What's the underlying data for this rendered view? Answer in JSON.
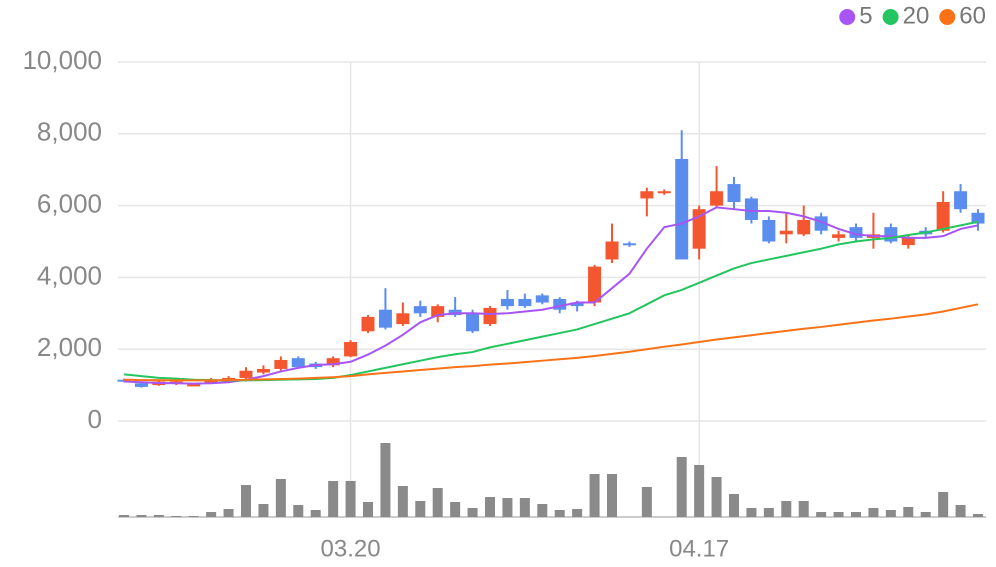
{
  "chart_data": {
    "type": "candlestick",
    "categories": [
      null,
      null,
      null,
      null,
      null,
      null,
      null,
      null,
      null,
      null,
      null,
      null,
      null,
      "03.20",
      null,
      null,
      null,
      null,
      null,
      null,
      null,
      null,
      null,
      null,
      null,
      null,
      null,
      null,
      null,
      null,
      null,
      null,
      null,
      "04.17",
      null,
      null,
      null,
      null,
      null,
      null,
      null,
      null,
      null,
      null,
      null,
      null,
      null,
      null,
      null,
      null
    ],
    "open": [
      1150,
      1050,
      1000,
      1050,
      1000,
      1050,
      1100,
      1200,
      1350,
      1450,
      1750,
      1600,
      1550,
      1800,
      2500,
      3100,
      2700,
      3200,
      2900,
      3100,
      3000,
      2700,
      3400,
      3400,
      3500,
      3400,
      3300,
      3300,
      4500,
      4950,
      6200,
      6400,
      7300,
      4800,
      6000,
      6600,
      6200,
      5600,
      5200,
      5200,
      5700,
      5100,
      5400,
      5100,
      5400,
      4900,
      5300,
      5300,
      6400,
      5800
    ],
    "high": [
      1180,
      1100,
      1150,
      1150,
      1050,
      1200,
      1250,
      1500,
      1550,
      1800,
      1800,
      1650,
      1800,
      2250,
      2950,
      3700,
      3300,
      3350,
      3250,
      3450,
      3100,
      3200,
      3650,
      3550,
      3550,
      3450,
      3350,
      4350,
      5500,
      5000,
      6500,
      6450,
      8100,
      6000,
      7100,
      6800,
      6250,
      5700,
      5800,
      6000,
      5800,
      5300,
      5500,
      5800,
      5500,
      5200,
      5400,
      6400,
      6600,
      5900
    ],
    "low": [
      1080,
      930,
      980,
      1000,
      980,
      1030,
      1080,
      1150,
      1300,
      1400,
      1480,
      1450,
      1500,
      1780,
      2450,
      2550,
      2650,
      2900,
      2750,
      2900,
      2450,
      2650,
      3100,
      3150,
      3250,
      3000,
      3050,
      3200,
      4400,
      4850,
      5700,
      6300,
      4500,
      4500,
      5950,
      5900,
      5500,
      4950,
      4950,
      5150,
      5200,
      5000,
      5000,
      4800,
      4950,
      4800,
      5100,
      5250,
      5800,
      5300
    ],
    "close": [
      1100,
      950,
      1100,
      1100,
      1020,
      1150,
      1200,
      1400,
      1450,
      1700,
      1500,
      1500,
      1750,
      2200,
      2900,
      2600,
      3000,
      3000,
      3200,
      2950,
      2500,
      3150,
      3200,
      3200,
      3300,
      3100,
      3200,
      4300,
      5000,
      4900,
      6400,
      6400,
      4500,
      5900,
      6400,
      6100,
      5600,
      5000,
      5300,
      5600,
      5300,
      5200,
      5100,
      5200,
      5000,
      5100,
      5200,
      6100,
      5900,
      5500
    ],
    "up_color": "#f4562f",
    "down_color": "#5b8def",
    "series": [
      {
        "name": "5",
        "color": "#a855f7",
        "values": [
          1100,
          1080,
          1060,
          1050,
          1040,
          1050,
          1080,
          1150,
          1250,
          1380,
          1480,
          1560,
          1580,
          1650,
          1850,
          2100,
          2400,
          2750,
          2950,
          3000,
          3000,
          2980,
          3000,
          3050,
          3100,
          3200,
          3300,
          3300,
          3700,
          4100,
          4800,
          5400,
          5500,
          5700,
          5950,
          5900,
          5850,
          5850,
          5800,
          5700,
          5550,
          5350,
          5200,
          5150,
          5150,
          5100,
          5100,
          5150,
          5350,
          5450
        ]
      },
      {
        "name": "20",
        "color": "#22c55e",
        "values": [
          1300,
          1250,
          1200,
          1180,
          1150,
          1140,
          1130,
          1130,
          1140,
          1150,
          1160,
          1170,
          1200,
          1280,
          1380,
          1480,
          1580,
          1680,
          1780,
          1860,
          1920,
          2050,
          2150,
          2250,
          2350,
          2450,
          2550,
          2700,
          2850,
          3000,
          3250,
          3500,
          3650,
          3850,
          4050,
          4250,
          4400,
          4500,
          4600,
          4700,
          4800,
          4920,
          5000,
          5060,
          5100,
          5180,
          5250,
          5350,
          5450,
          5550
        ]
      },
      {
        "name": "60",
        "color": "#f97316",
        "values": [
          1150,
          1140,
          1140,
          1130,
          1130,
          1130,
          1140,
          1150,
          1160,
          1170,
          1180,
          1200,
          1220,
          1250,
          1300,
          1340,
          1380,
          1420,
          1460,
          1500,
          1530,
          1570,
          1600,
          1640,
          1680,
          1720,
          1760,
          1810,
          1870,
          1930,
          2000,
          2070,
          2130,
          2200,
          2270,
          2330,
          2390,
          2450,
          2510,
          2570,
          2620,
          2680,
          2740,
          2800,
          2850,
          2910,
          2970,
          3050,
          3150,
          3250
        ]
      }
    ],
    "volume": {
      "color": "#8a8a8a",
      "values": [
        2,
        2,
        2,
        1,
        1,
        5,
        8,
        32,
        13,
        38,
        12,
        7,
        36,
        36,
        15,
        74,
        31,
        16,
        29,
        15,
        9,
        20,
        19,
        19,
        13,
        7,
        8,
        43,
        43,
        0,
        30,
        0,
        60,
        52,
        40,
        23,
        9,
        9,
        16,
        16,
        5,
        5,
        5,
        9,
        7,
        10,
        5,
        25,
        12,
        3
      ]
    },
    "ylim": [
      0,
      10000
    ],
    "yticks": [
      0,
      {
        "value": 2000,
        "label": "2,000"
      },
      {
        "value": 4000,
        "label": "4,000"
      },
      {
        "value": 6000,
        "label": "6,000"
      },
      {
        "value": 8000,
        "label": "8,000"
      },
      {
        "value": 10000,
        "label": "10,000"
      }
    ],
    "grid": true
  }
}
